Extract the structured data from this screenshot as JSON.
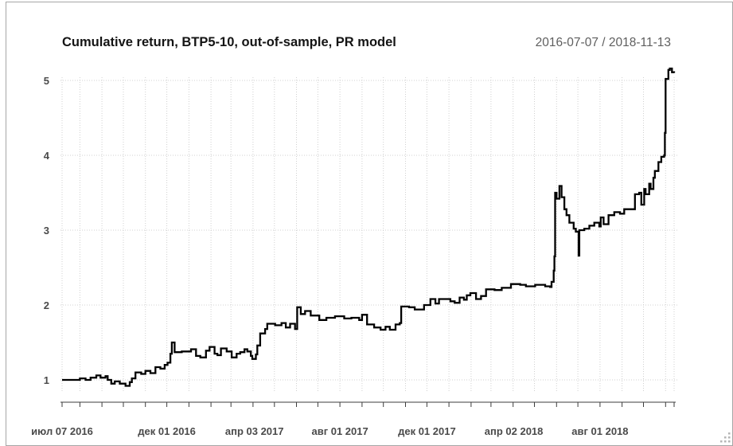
{
  "window": {
    "background": "#ffffff",
    "border_color": "#a6a6a6"
  },
  "icons": {
    "resize_grip": "diagonal-dots-resize-grip"
  },
  "chart_data": {
    "type": "line",
    "title": "Cumulative return, BTP5-10, out-of-sample, PR model",
    "subtitle": "2016-07-07 / 2018-11-13",
    "xlabel": "",
    "ylabel": "",
    "legend": "none",
    "grid": "dotted; vertical line each month, horizontal line each integer",
    "x_range": [
      "2016-07-07",
      "2018-11-13"
    ],
    "ylim": [
      0.85,
      5.3
    ],
    "y_ticks": [
      1,
      2,
      3,
      4,
      5
    ],
    "x_tick_labels": [
      {
        "label": "июл 07 2016",
        "date": "2016-07-07"
      },
      {
        "label": "дек 01 2016",
        "date": "2016-12-01"
      },
      {
        "label": "апр 03 2017",
        "date": "2017-04-03"
      },
      {
        "label": "авг 01 2017",
        "date": "2017-08-01"
      },
      {
        "label": "дек 01 2017",
        "date": "2017-12-01"
      },
      {
        "label": "апр 02 2018",
        "date": "2018-04-02"
      },
      {
        "label": "авг 01 2018",
        "date": "2018-08-01"
      }
    ],
    "colors": {
      "line": "#000000",
      "grid": "#d0d0d0",
      "axis": "#3c3c3c",
      "labels": "#4a4a4a",
      "title": "#141414",
      "subtitle": "#5f5f5f"
    },
    "series": [
      {
        "name": "cumulative_return",
        "points": [
          [
            "2016-07-07",
            1.0
          ],
          [
            "2016-07-26",
            1.0
          ],
          [
            "2016-08-01",
            1.02
          ],
          [
            "2016-08-09",
            1.0
          ],
          [
            "2016-08-16",
            1.03
          ],
          [
            "2016-08-24",
            1.06
          ],
          [
            "2016-08-30",
            1.03
          ],
          [
            "2016-09-06",
            1.05
          ],
          [
            "2016-09-09",
            1.0
          ],
          [
            "2016-09-14",
            0.95
          ],
          [
            "2016-09-19",
            0.98
          ],
          [
            "2016-09-26",
            0.95
          ],
          [
            "2016-10-04",
            0.92
          ],
          [
            "2016-10-10",
            0.97
          ],
          [
            "2016-10-13",
            1.02
          ],
          [
            "2016-10-18",
            1.1
          ],
          [
            "2016-10-26",
            1.08
          ],
          [
            "2016-11-01",
            1.12
          ],
          [
            "2016-11-08",
            1.09
          ],
          [
            "2016-11-15",
            1.17
          ],
          [
            "2016-11-22",
            1.15
          ],
          [
            "2016-11-28",
            1.2
          ],
          [
            "2016-12-02",
            1.23
          ],
          [
            "2016-12-06",
            1.35
          ],
          [
            "2016-12-08",
            1.5
          ],
          [
            "2016-12-12",
            1.37
          ],
          [
            "2016-12-22",
            1.38
          ],
          [
            "2017-01-04",
            1.41
          ],
          [
            "2017-01-11",
            1.32
          ],
          [
            "2017-01-17",
            1.3
          ],
          [
            "2017-01-25",
            1.39
          ],
          [
            "2017-01-30",
            1.44
          ],
          [
            "2017-02-06",
            1.35
          ],
          [
            "2017-02-10",
            1.33
          ],
          [
            "2017-02-15",
            1.42
          ],
          [
            "2017-02-23",
            1.38
          ],
          [
            "2017-03-02",
            1.3
          ],
          [
            "2017-03-09",
            1.35
          ],
          [
            "2017-03-14",
            1.37
          ],
          [
            "2017-03-20",
            1.41
          ],
          [
            "2017-03-24",
            1.38
          ],
          [
            "2017-03-29",
            1.32
          ],
          [
            "2017-03-31",
            1.28
          ],
          [
            "2017-04-05",
            1.34
          ],
          [
            "2017-04-07",
            1.46
          ],
          [
            "2017-04-11",
            1.62
          ],
          [
            "2017-04-18",
            1.68
          ],
          [
            "2017-04-21",
            1.75
          ],
          [
            "2017-05-02",
            1.73
          ],
          [
            "2017-05-11",
            1.76
          ],
          [
            "2017-05-17",
            1.7
          ],
          [
            "2017-05-23",
            1.75
          ],
          [
            "2017-05-30",
            1.68
          ],
          [
            "2017-06-02",
            1.97
          ],
          [
            "2017-06-07",
            1.88
          ],
          [
            "2017-06-13",
            1.92
          ],
          [
            "2017-06-21",
            1.86
          ],
          [
            "2017-07-03",
            1.8
          ],
          [
            "2017-07-13",
            1.83
          ],
          [
            "2017-07-25",
            1.85
          ],
          [
            "2017-08-07",
            1.82
          ],
          [
            "2017-08-17",
            1.83
          ],
          [
            "2017-08-28",
            1.8
          ],
          [
            "2017-09-01",
            1.87
          ],
          [
            "2017-09-08",
            1.74
          ],
          [
            "2017-09-18",
            1.7
          ],
          [
            "2017-09-27",
            1.67
          ],
          [
            "2017-10-04",
            1.71
          ],
          [
            "2017-10-10",
            1.67
          ],
          [
            "2017-10-18",
            1.74
          ],
          [
            "2017-10-24",
            1.76
          ],
          [
            "2017-10-26",
            1.98
          ],
          [
            "2017-11-06",
            1.97
          ],
          [
            "2017-11-14",
            1.94
          ],
          [
            "2017-11-27",
            2.0
          ],
          [
            "2017-12-06",
            2.08
          ],
          [
            "2017-12-13",
            2.02
          ],
          [
            "2017-12-18",
            2.08
          ],
          [
            "2018-01-03",
            2.05
          ],
          [
            "2018-01-09",
            2.03
          ],
          [
            "2018-01-16",
            2.1
          ],
          [
            "2018-01-22",
            2.07
          ],
          [
            "2018-01-26",
            2.13
          ],
          [
            "2018-01-31",
            2.16
          ],
          [
            "2018-02-08",
            2.08
          ],
          [
            "2018-02-15",
            2.12
          ],
          [
            "2018-02-22",
            2.21
          ],
          [
            "2018-03-06",
            2.2
          ],
          [
            "2018-03-16",
            2.23
          ],
          [
            "2018-03-29",
            2.28
          ],
          [
            "2018-04-11",
            2.27
          ],
          [
            "2018-04-19",
            2.25
          ],
          [
            "2018-05-02",
            2.27
          ],
          [
            "2018-05-16",
            2.25
          ],
          [
            "2018-05-23",
            2.24
          ],
          [
            "2018-05-25",
            2.31
          ],
          [
            "2018-05-28",
            2.46
          ],
          [
            "2018-05-29",
            2.65
          ],
          [
            "2018-05-30",
            3.5
          ],
          [
            "2018-06-01",
            3.42
          ],
          [
            "2018-06-05",
            3.59
          ],
          [
            "2018-06-08",
            3.44
          ],
          [
            "2018-06-12",
            3.28
          ],
          [
            "2018-06-15",
            3.2
          ],
          [
            "2018-06-19",
            3.1
          ],
          [
            "2018-06-25",
            3.02
          ],
          [
            "2018-06-28",
            2.98
          ],
          [
            "2018-07-02",
            2.66
          ],
          [
            "2018-07-03",
            3.0
          ],
          [
            "2018-07-10",
            3.02
          ],
          [
            "2018-07-17",
            3.06
          ],
          [
            "2018-07-24",
            3.1
          ],
          [
            "2018-07-31",
            3.05
          ],
          [
            "2018-08-02",
            3.17
          ],
          [
            "2018-08-06",
            3.08
          ],
          [
            "2018-08-13",
            3.2
          ],
          [
            "2018-08-21",
            3.24
          ],
          [
            "2018-08-29",
            3.22
          ],
          [
            "2018-09-04",
            3.28
          ],
          [
            "2018-09-14",
            3.28
          ],
          [
            "2018-09-19",
            3.48
          ],
          [
            "2018-09-25",
            3.5
          ],
          [
            "2018-09-28",
            3.34
          ],
          [
            "2018-10-02",
            3.55
          ],
          [
            "2018-10-04",
            3.48
          ],
          [
            "2018-10-09",
            3.62
          ],
          [
            "2018-10-11",
            3.55
          ],
          [
            "2018-10-15",
            3.7
          ],
          [
            "2018-10-17",
            3.79
          ],
          [
            "2018-10-22",
            3.91
          ],
          [
            "2018-10-26",
            3.98
          ],
          [
            "2018-10-30",
            4.0
          ],
          [
            "2018-10-31",
            4.3
          ],
          [
            "2018-11-01",
            5.02
          ],
          [
            "2018-11-05",
            5.14
          ],
          [
            "2018-11-07",
            5.16
          ],
          [
            "2018-11-10",
            5.11
          ],
          [
            "2018-11-13",
            5.1
          ]
        ]
      }
    ]
  }
}
